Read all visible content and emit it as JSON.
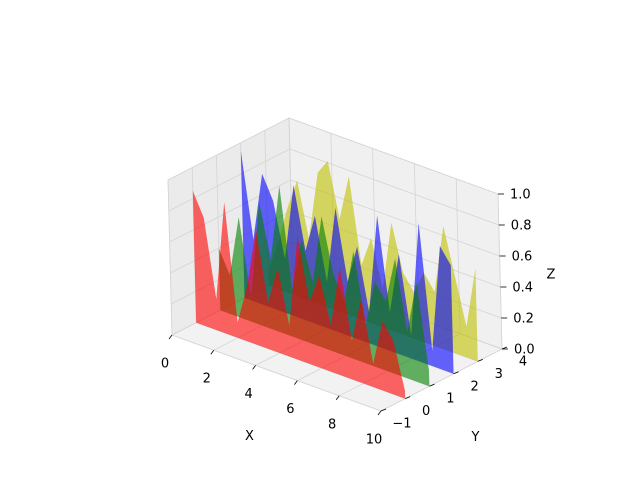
{
  "chart_data": {
    "type": "area",
    "projection": "3d",
    "title": "",
    "xlabel": "X",
    "ylabel": "Y",
    "zlabel": "Z",
    "xlim": [
      0,
      10
    ],
    "ylim": [
      -1,
      4
    ],
    "zlim": [
      0,
      1
    ],
    "grid": true,
    "x_ticks": [
      0,
      2,
      4,
      6,
      8,
      10
    ],
    "y_ticks": [
      -1,
      0,
      1,
      2,
      3,
      4
    ],
    "z_ticks": [
      0.0,
      0.2,
      0.4,
      0.6,
      0.8,
      1.0
    ],
    "x_tick_labels": [
      "0",
      "2",
      "4",
      "6",
      "8",
      "10"
    ],
    "y_tick_labels": [
      "−1",
      "0",
      "1",
      "2",
      "3",
      "4"
    ],
    "z_tick_labels": [
      "0.0",
      "0.2",
      "0.4",
      "0.6",
      "0.8",
      "1.0"
    ],
    "x": [
      0.0,
      0.5,
      1.0,
      1.5,
      2.0,
      2.5,
      3.0,
      3.5,
      4.0,
      4.5,
      5.0,
      5.5,
      6.0,
      6.5,
      7.0,
      7.5,
      8.0,
      8.5,
      9.0,
      9.5,
      10.0
    ],
    "series": [
      {
        "y": 3,
        "color": "#bfbf00",
        "opacity": 0.6,
        "values": [
          0.1,
          0.3,
          0.55,
          0.75,
          0.4,
          0.85,
          0.95,
          0.6,
          0.9,
          0.35,
          0.55,
          0.25,
          0.7,
          0.4,
          0.3,
          0.45,
          0.35,
          0.8,
          0.5,
          0.2,
          0.6
        ]
      },
      {
        "y": 2,
        "color": "#0000ff",
        "opacity": 0.6,
        "values": [
          0.95,
          0.4,
          0.85,
          0.7,
          0.35,
          0.85,
          0.45,
          0.7,
          0.3,
          0.8,
          0.35,
          0.6,
          0.2,
          0.85,
          0.25,
          0.65,
          0.15,
          0.9,
          0.1,
          0.8,
          0.7
        ]
      },
      {
        "y": 1,
        "color": "#008000",
        "opacity": 0.6,
        "values": [
          0.4,
          0.25,
          0.65,
          0.15,
          0.8,
          0.45,
          0.95,
          0.3,
          0.65,
          0.4,
          0.85,
          0.5,
          0.35,
          0.7,
          0.25,
          0.55,
          0.45,
          0.75,
          0.3,
          0.65,
          0.1
        ]
      },
      {
        "y": 0,
        "color": "#ff0000",
        "opacity": 0.6,
        "values": [
          0.85,
          0.7,
          0.2,
          0.85,
          0.1,
          0.35,
          0.75,
          0.3,
          0.55,
          0.2,
          0.8,
          0.4,
          0.6,
          0.3,
          0.7,
          0.25,
          0.55,
          0.15,
          0.45,
          0.35,
          0.05
        ]
      }
    ]
  }
}
